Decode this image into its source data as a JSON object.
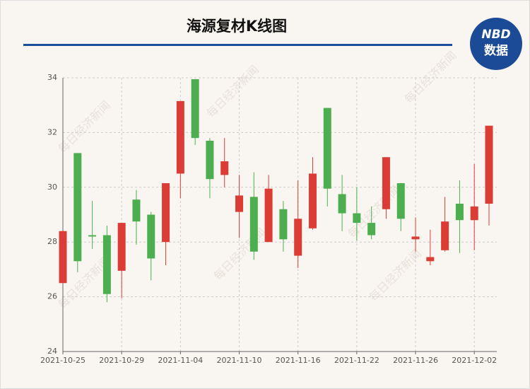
{
  "chart_data": {
    "type": "candlestick",
    "title": "海源复材K线图",
    "logo": {
      "top": "NBD",
      "bottom": "数据"
    },
    "watermark": "每日经济新闻",
    "categories": [
      "2021-10-25",
      null,
      null,
      null,
      "2021-10-29",
      null,
      null,
      null,
      "2021-11-04",
      null,
      null,
      null,
      "2021-11-10",
      null,
      null,
      null,
      "2021-11-16",
      null,
      null,
      null,
      "2021-11-22",
      null,
      null,
      null,
      "2021-11-26",
      null,
      null,
      null,
      "2021-12-02",
      null
    ],
    "open": [
      26.5,
      31.25,
      28.25,
      28.25,
      26.95,
      29.55,
      29.0,
      28.0,
      30.5,
      33.95,
      31.7,
      30.45,
      29.1,
      29.65,
      28.0,
      29.2,
      27.5,
      28.5,
      32.9,
      29.75,
      29.05,
      28.7,
      29.2,
      30.15,
      28.1,
      27.3,
      27.7,
      29.4,
      28.8,
      29.4
    ],
    "close": [
      28.4,
      27.3,
      28.2,
      26.1,
      28.7,
      28.75,
      27.4,
      30.15,
      33.15,
      31.8,
      30.3,
      30.95,
      29.7,
      27.65,
      29.95,
      28.1,
      28.85,
      30.5,
      29.95,
      29.05,
      28.7,
      28.25,
      31.1,
      28.85,
      28.2,
      27.45,
      28.75,
      28.8,
      29.3,
      32.25
    ],
    "high": [
      28.4,
      31.25,
      29.5,
      28.6,
      28.7,
      29.9,
      29.1,
      30.15,
      33.15,
      33.95,
      31.8,
      31.8,
      30.45,
      30.55,
      30.45,
      29.5,
      30.25,
      31.1,
      32.9,
      30.45,
      30.0,
      29.3,
      31.1,
      30.15,
      28.9,
      28.45,
      29.65,
      30.25,
      30.85,
      32.25
    ],
    "low": [
      26.5,
      26.9,
      27.75,
      25.8,
      25.95,
      27.9,
      26.6,
      27.15,
      29.6,
      31.55,
      29.6,
      30.0,
      28.15,
      27.35,
      28.0,
      27.65,
      27.05,
      28.45,
      29.3,
      28.4,
      28.05,
      28.1,
      28.85,
      28.4,
      27.65,
      27.15,
      27.65,
      27.6,
      27.7,
      28.6
    ],
    "up_color": "#db3d36",
    "down_color": "#4cae4f",
    "ylim": [
      24,
      34
    ],
    "yticks": [
      24,
      26,
      28,
      30,
      32,
      34
    ],
    "grid": true
  }
}
